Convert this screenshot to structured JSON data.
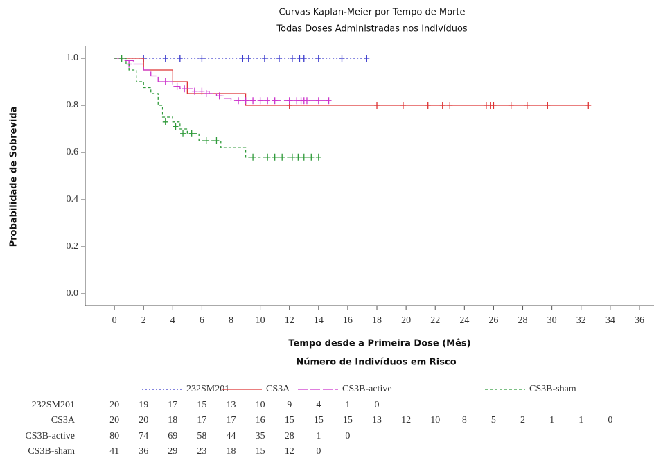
{
  "chart_data": {
    "type": "step",
    "title": "Curvas Kaplan-Meier por Tempo de Morte",
    "subtitle": "Todas Doses Administradas nos Indivíduos",
    "y_label": "Probabilidade de Sobrevida",
    "x_label": "Tempo desde a Primeira Dose (Mês)",
    "risk_title": "Número de Indivíduos em Risco",
    "xlim": [
      -2,
      37
    ],
    "ylim": [
      -0.05,
      1.05
    ],
    "xticks": [
      0,
      2,
      4,
      6,
      8,
      10,
      12,
      14,
      16,
      18,
      20,
      22,
      24,
      26,
      28,
      30,
      32,
      34,
      36
    ],
    "yticks": [
      {
        "value": 0,
        "label": "0.0"
      },
      0.2,
      0.4,
      0.6,
      0.8,
      {
        "value": 1,
        "label": "1.0"
      }
    ],
    "series": [
      {
        "name": "232SM201",
        "color": "#3a3acc",
        "dash": "2,3",
        "x": [
          0,
          17.3
        ],
        "values": [
          1,
          1
        ],
        "censor_x": [
          2,
          3.5,
          4.5,
          6,
          8.8,
          9.2,
          10.3,
          11.3,
          12.2,
          12.7,
          13,
          14,
          15.6,
          17.3
        ],
        "censor_values": [
          1,
          1,
          1,
          1,
          1,
          1,
          1,
          1,
          1,
          1,
          1,
          1,
          1,
          1
        ],
        "at_risk": [
          20,
          19,
          17,
          15,
          13,
          10,
          9,
          4,
          1,
          0
        ]
      },
      {
        "name": "CS3A",
        "color": "#dd3333",
        "dash": "none",
        "x": [
          0,
          2,
          4,
          5,
          9,
          32.5
        ],
        "values": [
          1,
          0.95,
          0.9,
          0.85,
          0.8,
          0.8
        ],
        "censor_x": [
          12,
          18,
          19.8,
          21.5,
          22.5,
          23,
          25.5,
          25.8,
          26,
          27.2,
          28.3,
          29.7,
          32.5
        ],
        "censor_values": [
          0.8,
          0.8,
          0.8,
          0.8,
          0.8,
          0.8,
          0.8,
          0.8,
          0.8,
          0.8,
          0.8,
          0.8,
          0.8
        ],
        "at_risk": [
          20,
          20,
          18,
          17,
          17,
          16,
          15,
          15,
          15,
          13,
          12,
          10,
          8,
          5,
          2,
          1,
          1,
          0
        ]
      },
      {
        "name": "CS3B-active",
        "color": "#cc33cc",
        "dash": "14,4",
        "x": [
          0,
          0.5,
          1.3,
          2,
          2.5,
          3,
          4,
          4.5,
          5.5,
          6.5,
          7,
          7.5,
          8,
          14.7
        ],
        "values": [
          1,
          0.99,
          0.975,
          0.95,
          0.925,
          0.9,
          0.88,
          0.87,
          0.86,
          0.85,
          0.84,
          0.83,
          0.82,
          0.82
        ],
        "censor_x": [
          1,
          3.5,
          4.3,
          4.8,
          5.5,
          6,
          6.3,
          7.2,
          8.5,
          9,
          9.5,
          10,
          10.5,
          11,
          12,
          12.5,
          12.8,
          13,
          13.2,
          14,
          14.7
        ],
        "censor_values": [
          0.975,
          0.9,
          0.88,
          0.87,
          0.86,
          0.86,
          0.85,
          0.84,
          0.82,
          0.82,
          0.82,
          0.82,
          0.82,
          0.82,
          0.82,
          0.82,
          0.82,
          0.82,
          0.82,
          0.82,
          0.82
        ],
        "at_risk": [
          80,
          74,
          69,
          58,
          44,
          35,
          28,
          1,
          0
        ]
      },
      {
        "name": "CS3B-sham",
        "color": "#2f9a3a",
        "dash": "4,3",
        "x": [
          0,
          0.8,
          1,
          1.5,
          2,
          2.5,
          3,
          3.3,
          4,
          4.5,
          5,
          5.8,
          7.3,
          9,
          14
        ],
        "values": [
          1,
          0.975,
          0.95,
          0.9,
          0.875,
          0.85,
          0.8,
          0.75,
          0.73,
          0.7,
          0.68,
          0.65,
          0.62,
          0.58,
          0.58
        ],
        "censor_x": [
          0.5,
          3.5,
          4.2,
          4.7,
          5.3,
          6.3,
          7,
          9.5,
          10.5,
          11,
          11.5,
          12.2,
          12.6,
          13,
          13.5,
          14
        ],
        "censor_values": [
          1,
          0.73,
          0.71,
          0.68,
          0.68,
          0.65,
          0.65,
          0.58,
          0.58,
          0.58,
          0.58,
          0.58,
          0.58,
          0.58,
          0.58,
          0.58
        ],
        "at_risk": [
          41,
          36,
          29,
          23,
          18,
          15,
          12,
          0
        ]
      }
    ]
  }
}
